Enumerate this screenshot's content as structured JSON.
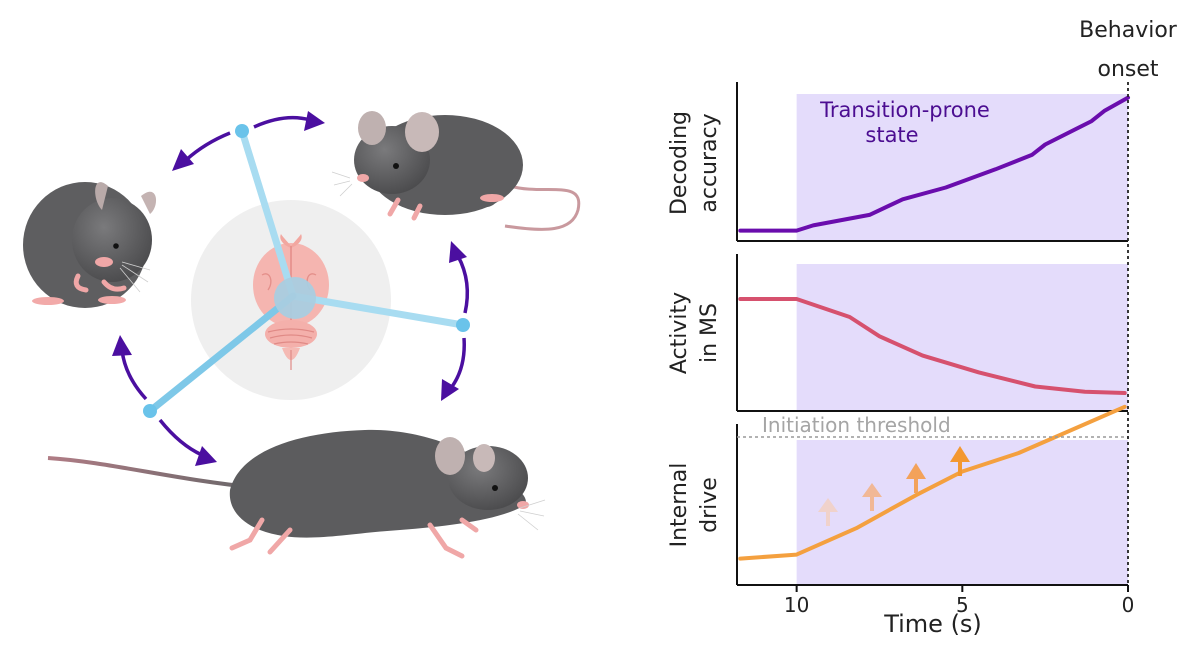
{
  "labels": {
    "behavior_onset_line1": "Behavior",
    "behavior_onset_line2": "onset",
    "transition_line1": "Transition-prone",
    "transition_line2": "state",
    "initiation_threshold": "Initiation threshold",
    "x_axis_title": "Time (s)"
  },
  "panels": [
    {
      "id": "decoding",
      "ylabel_line1": "Decoding",
      "ylabel_line2": "accuracy"
    },
    {
      "id": "activity",
      "ylabel_line1": "Activity",
      "ylabel_line2": "in MS"
    },
    {
      "id": "drive",
      "ylabel_line1": "Internal",
      "ylabel_line2": "drive"
    }
  ],
  "colors": {
    "shade": "#e4dcfb",
    "decoding": "#6a0dad",
    "activity": "#d6516e",
    "drive": "#f4a03f",
    "threshold": "#999999",
    "arrow_purple": "#4b0fa0",
    "spoke": "#7ec8e8",
    "mouse": "#5c5c5e",
    "pink": "#f2a9a9"
  },
  "chart_data": {
    "type": "line",
    "x_label": "Time (s)",
    "x_ticks": [
      10,
      5,
      0
    ],
    "x_range": [
      11.8,
      0
    ],
    "shaded_region": [
      10,
      0
    ],
    "shaded_label": "Transition-prone state",
    "event_marker": {
      "x": 0,
      "label": "Behavior onset"
    },
    "threshold": {
      "label": "Initiation threshold"
    },
    "series": [
      {
        "panel": "decoding",
        "x": [
          11.7,
          10,
          9.5,
          7.8,
          6.8,
          5.5,
          4,
          2.9,
          2.5,
          1.1,
          0.7,
          0
        ],
        "y": [
          0.08,
          0.08,
          0.12,
          0.2,
          0.32,
          0.41,
          0.55,
          0.66,
          0.74,
          0.92,
          1.0,
          1.1
        ]
      },
      {
        "panel": "activity",
        "x": [
          11.7,
          10,
          8.4,
          7.5,
          6.2,
          4.5,
          2.8,
          1.3,
          0.1
        ],
        "y": [
          0.87,
          0.87,
          0.73,
          0.58,
          0.43,
          0.3,
          0.19,
          0.15,
          0.14
        ]
      },
      {
        "panel": "drive",
        "x": [
          11.7,
          10,
          8.2,
          6.4,
          5,
          3.3,
          0.1
        ],
        "y": [
          0.2,
          0.23,
          0.43,
          0.68,
          0.86,
          1.0,
          1.35
        ]
      }
    ]
  }
}
